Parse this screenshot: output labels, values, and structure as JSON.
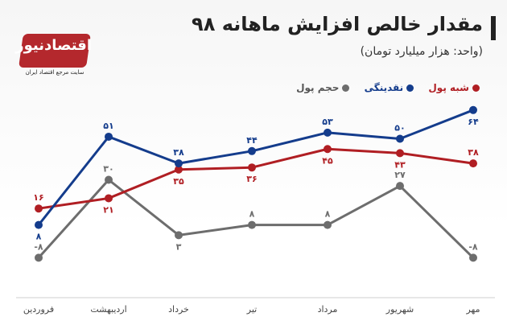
{
  "header": {
    "title": "مقدار خالص افزایش ماهانه ۹۸",
    "subtitle": "(واحد: هزار میلیارد تومان)"
  },
  "logo": {
    "name": "اقتصادنیوز",
    "tagline": "سایت مرجع اقتصاد ایران"
  },
  "legend": [
    {
      "label": "شبه پول",
      "color": "#b01e23"
    },
    {
      "label": "نقدینگی",
      "color": "#143c8c"
    },
    {
      "label": "حجم پول",
      "color": "#6d6d6d"
    }
  ],
  "chart_data": {
    "type": "line",
    "x": [
      "فروردین",
      "اردیبهشت",
      "خرداد",
      "تیر",
      "مرداد",
      "شهریور",
      "مهر"
    ],
    "series": [
      {
        "name": "نقدینگی",
        "color": "#143c8c",
        "values": [
          8,
          51,
          38,
          44,
          53,
          50,
          64
        ],
        "labels": [
          "۸",
          "۵۱",
          "۳۸",
          "۴۴",
          "۵۳",
          "۵۰",
          "۶۴"
        ]
      },
      {
        "name": "شبه پول",
        "color": "#b01e23",
        "values": [
          16,
          21,
          35,
          36,
          45,
          43,
          38
        ],
        "labels": [
          "۱۶",
          "۲۱",
          "۳۵",
          "۳۶",
          "۴۵",
          "۴۳",
          "۳۸"
        ]
      },
      {
        "name": "حجم پول",
        "color": "#6d6d6d",
        "values": [
          -8,
          30,
          3,
          8,
          8,
          27,
          -8
        ],
        "labels": [
          "-۸",
          "۳۰",
          "۳",
          "۸",
          "۸",
          "۲۷",
          "-۸"
        ]
      }
    ]
  }
}
